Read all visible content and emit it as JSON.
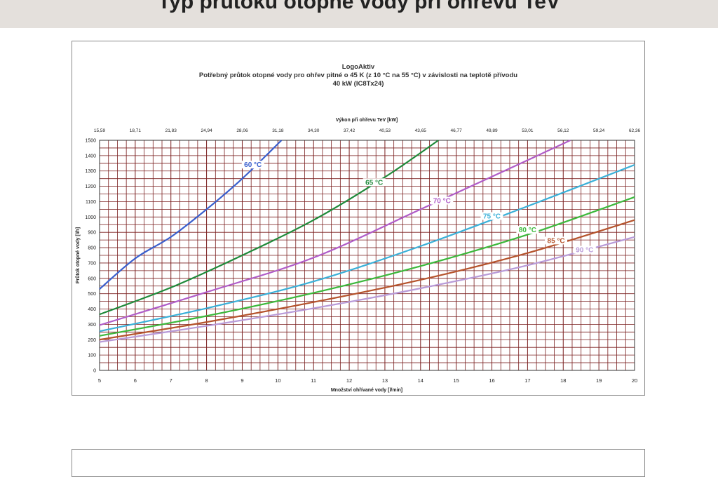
{
  "page": {
    "header_text": "Typ průtoku otopné vody při ohřevu TeV"
  },
  "chart_data": {
    "type": "line",
    "title": "LogoAktiv",
    "subtitle": "Potřebný průtok otopné vody pro ohřev pitné o 45 K (z 10 °C na 55 °C) v závislosti na teplotě přívodu",
    "subtitle2": "40  kW (IC8Tx24)",
    "xlabel": "Množství ohřívané vody [l/min]",
    "ylabel": "Průtok otopné vody [l/h]",
    "x2label": "Výkon při ohřevu TeV [kW]",
    "xlim": [
      5,
      20
    ],
    "ylim": [
      0,
      1500
    ],
    "grid": true,
    "x_ticks": [
      5,
      6,
      7,
      8,
      9,
      10,
      11,
      12,
      13,
      14,
      15,
      16,
      17,
      18,
      19,
      20
    ],
    "y_ticks": [
      0,
      100,
      200,
      300,
      400,
      500,
      600,
      700,
      800,
      900,
      1000,
      1100,
      1200,
      1300,
      1400,
      1500
    ],
    "x2_ticks": [
      "15,59",
      "18,71",
      "21,83",
      "24,94",
      "28,06",
      "31,18",
      "34,30",
      "37,42",
      "40,53",
      "43,65",
      "46,77",
      "49,89",
      "53,01",
      "56,12",
      "59,24",
      "62,36"
    ],
    "series": [
      {
        "name": "60 °C",
        "color": "#3a5fcd",
        "x": [
          5,
          6,
          7,
          8,
          9,
          10.1
        ],
        "values": [
          530,
          730,
          870,
          1050,
          1250,
          1500
        ],
        "label_at": [
          9.3,
          1330
        ]
      },
      {
        "name": "65 °C",
        "color": "#1f8a3a",
        "x": [
          5,
          7,
          9,
          11,
          13,
          14.5
        ],
        "values": [
          365,
          540,
          750,
          980,
          1260,
          1500
        ],
        "label_at": [
          12.7,
          1215
        ]
      },
      {
        "name": "70 °C",
        "color": "#b05cc8",
        "x": [
          5,
          8,
          11,
          14,
          17,
          18.2
        ],
        "values": [
          295,
          510,
          735,
          1050,
          1370,
          1500
        ],
        "label_at": [
          14.6,
          1095
        ]
      },
      {
        "name": "75 °C",
        "color": "#3ab0d8",
        "x": [
          5,
          8,
          11,
          14,
          17,
          20
        ],
        "values": [
          255,
          405,
          580,
          810,
          1070,
          1340
        ],
        "label_at": [
          16,
          995
        ]
      },
      {
        "name": "80 °C",
        "color": "#3cb83c",
        "x": [
          5,
          8,
          11,
          14,
          17,
          20
        ],
        "values": [
          225,
          355,
          505,
          680,
          885,
          1130
        ],
        "label_at": [
          17,
          905
        ]
      },
      {
        "name": "85 °C",
        "color": "#b5532c",
        "x": [
          5,
          8,
          11,
          14,
          17,
          20
        ],
        "values": [
          200,
          315,
          445,
          590,
          765,
          980
        ],
        "label_at": [
          17.8,
          835
        ]
      },
      {
        "name": "90 °C",
        "color": "#b89ad8",
        "x": [
          5,
          8,
          11,
          14,
          17,
          20
        ],
        "values": [
          185,
          290,
          405,
          535,
          685,
          870
        ],
        "label_at": [
          18.6,
          775
        ]
      }
    ]
  }
}
